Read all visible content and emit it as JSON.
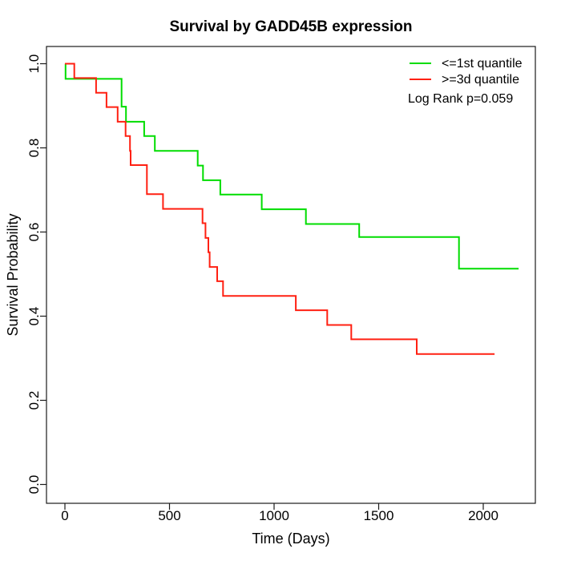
{
  "chart_data": {
    "type": "line",
    "variant": "kaplan-meier-step-survival",
    "title": "Survival by GADD45B expression",
    "xlabel": "Time (Days)",
    "ylabel": "Survival Probability",
    "x_ticks": [
      0,
      500,
      1000,
      1500,
      2000
    ],
    "y_ticks": [
      0.0,
      0.2,
      0.4,
      0.6,
      0.8,
      1.0
    ],
    "xlim": [
      -90,
      2250
    ],
    "ylim": [
      -0.045,
      1.04
    ],
    "grid": false,
    "legend_position": "top-right",
    "annotation": "Log Rank p=0.059",
    "axis_color": "#1a1a1a",
    "series": [
      {
        "name": "<=1st quantile",
        "color": "#00dd00",
        "times": [
          0,
          3,
          271,
          292,
          379,
          430,
          635,
          660,
          743,
          941,
          1152,
          1407,
          1884
        ],
        "probs": [
          1.0,
          0.964,
          0.898,
          0.862,
          0.828,
          0.793,
          0.758,
          0.723,
          0.689,
          0.654,
          0.619,
          0.588,
          0.513
        ],
        "end_time": 2169
      },
      {
        "name": ">=3d quantile",
        "color": "#ff2012",
        "times": [
          0,
          45,
          149,
          199,
          252,
          290,
          311,
          314,
          392,
          469,
          658,
          672,
          686,
          692,
          728,
          756,
          1104,
          1254,
          1369,
          1682
        ],
        "probs": [
          1.0,
          0.966,
          0.931,
          0.897,
          0.862,
          0.828,
          0.793,
          0.759,
          0.69,
          0.655,
          0.621,
          0.586,
          0.552,
          0.517,
          0.483,
          0.448,
          0.414,
          0.379,
          0.345,
          0.31
        ],
        "end_time": 2054
      }
    ]
  }
}
